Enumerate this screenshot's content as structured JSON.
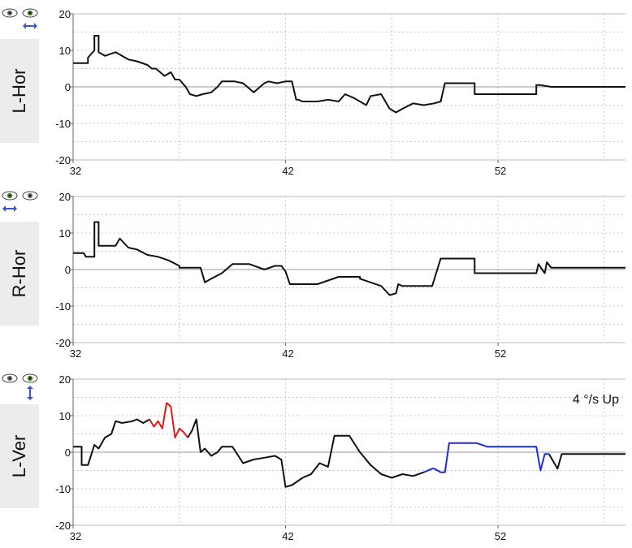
{
  "panels": [
    {
      "label": "L-Hor",
      "eyes": {
        "left": "eye-icon",
        "right": "eye-icon",
        "active": "left",
        "arrow": "horizontal-arrow-icon"
      }
    },
    {
      "label": "R-Hor",
      "eyes": {
        "left": "eye-icon",
        "right": "eye-icon",
        "active": "right",
        "arrow": "horizontal-arrow-icon"
      }
    },
    {
      "label": "L-Ver",
      "eyes": {
        "left": "eye-icon",
        "right": "eye-icon",
        "active": "left",
        "arrow": "vertical-arrow-icon"
      },
      "annotation": "4 °/s  Up"
    }
  ],
  "colors": {
    "trace": "#111111",
    "up": "#e01b1b",
    "down": "#1b2fd6",
    "grid": "#c8c8c8",
    "zero": "#999999",
    "label_bg": "#ececec",
    "arrow": "#3b55c8",
    "iris": "#4a8a2a"
  },
  "chart_data": [
    {
      "type": "line",
      "title": "L-Hor",
      "xlim": [
        32,
        58
      ],
      "ylim": [
        -20,
        20
      ],
      "xticks": [
        "32",
        "42",
        "52"
      ],
      "yticks": [
        "20",
        "10",
        "0",
        "-10",
        "-20"
      ],
      "grid": true,
      "series": [
        {
          "x": [
            32,
            32.7,
            32.7,
            33.0,
            33.0,
            33.2,
            33.2,
            33.5,
            34.0,
            34.3,
            34.6,
            35.0,
            35.5,
            35.7,
            35.9,
            36.3,
            36.6,
            36.8,
            37.0,
            37.3,
            37.5,
            37.8,
            38.1,
            38.5,
            38.8,
            39.0,
            39.5,
            39.6,
            40.0,
            40.5,
            40.8,
            41.0,
            41.2,
            41.6,
            42.0,
            42.3,
            42.5,
            42.6,
            42.8,
            43.5,
            44.0,
            44.5,
            44.8,
            45.2,
            45.5,
            45.8,
            46.0,
            46.5,
            46.9,
            47.2,
            47.5,
            48.0,
            48.5,
            49.0,
            49.3,
            49.5,
            50.0,
            50.5,
            50.9,
            50.9,
            52.0,
            53.0,
            53.5,
            53.8,
            53.8,
            54.0,
            54.5,
            55.0,
            56.0,
            57.0,
            58.0
          ],
          "y": [
            6.5,
            6.5,
            8,
            10,
            14,
            14,
            9.5,
            8.5,
            9.5,
            8.5,
            7.5,
            7,
            6,
            5,
            5,
            3,
            4,
            2,
            2,
            0,
            -2,
            -2.5,
            -2,
            -1.5,
            0,
            1.5,
            1.5,
            1.5,
            1,
            -1.5,
            0,
            1,
            1.5,
            1,
            1.5,
            1.5,
            -3.5,
            -3.5,
            -4,
            -4,
            -3.5,
            -4,
            -2,
            -3,
            -4,
            -5,
            -2.5,
            -2,
            -6,
            -7,
            -6,
            -4.5,
            -5,
            -4.5,
            -4,
            1,
            1,
            1,
            1,
            -2,
            -2,
            -2,
            -2,
            -2,
            0.5,
            0.5,
            0,
            0,
            0,
            0,
            0
          ]
        }
      ]
    },
    {
      "type": "line",
      "title": "R-Hor",
      "xlim": [
        32,
        58
      ],
      "ylim": [
        -20,
        20
      ],
      "xticks": [
        "32",
        "42",
        "52"
      ],
      "yticks": [
        "20",
        "10",
        "0",
        "-10",
        "-20"
      ],
      "grid": true,
      "series": [
        {
          "x": [
            32,
            32.5,
            32.6,
            33.0,
            33.0,
            33.2,
            33.2,
            34.0,
            34.2,
            34.6,
            35.0,
            35.5,
            36.0,
            36.5,
            37.0,
            37.0,
            38.0,
            38.2,
            38.5,
            39.0,
            39.5,
            40.0,
            40.3,
            41.0,
            41.5,
            41.8,
            42.0,
            42.2,
            42.4,
            43.5,
            44.5,
            45.0,
            45.5,
            45.5,
            46.5,
            46.9,
            47.2,
            47.3,
            47.5,
            48.0,
            48.9,
            49.3,
            49.5,
            50.5,
            50.9,
            50.9,
            52.0,
            53.0,
            53.8,
            53.9,
            54.2,
            54.3,
            54.5,
            55.0,
            56.0,
            57.0,
            58.0
          ],
          "y": [
            4.5,
            4.5,
            3.5,
            3.5,
            13,
            13,
            6.5,
            6.5,
            8.5,
            6,
            5.5,
            4,
            3.5,
            2.5,
            1,
            0.5,
            0.5,
            -3.5,
            -2.5,
            -1,
            1.5,
            1.5,
            1.5,
            0,
            1,
            1,
            -0.5,
            -4,
            -4,
            -4,
            -2,
            -2,
            -2,
            -2.5,
            -4.5,
            -7,
            -6.5,
            -4,
            -4.5,
            -4.5,
            -4.5,
            3,
            3,
            3,
            3,
            -1,
            -1,
            -1,
            -1,
            1.5,
            -1,
            2,
            0.5,
            0.5,
            0.5,
            0.5,
            0.5
          ]
        }
      ]
    },
    {
      "type": "line",
      "title": "L-Ver",
      "xlim": [
        32,
        58
      ],
      "ylim": [
        -20,
        20
      ],
      "xticks": [
        "32",
        "42",
        "52"
      ],
      "yticks": [
        "20",
        "10",
        "0",
        "-10",
        "-20"
      ],
      "grid": true,
      "annotation": "4 °/s  Up",
      "series": [
        {
          "x": [
            32,
            32.4,
            32.4,
            32.7,
            33.0,
            33.2,
            33.5,
            33.8,
            34.0,
            34.3,
            34.8,
            35.0,
            35.3,
            35.6
          ],
          "y": [
            1.5,
            1.5,
            -3.5,
            -3.5,
            2,
            1,
            4,
            5,
            8.5,
            8,
            8.5,
            9,
            8,
            9
          ]
        },
        {
          "x": [
            35.6,
            35.8,
            36.0,
            36.2,
            36.4,
            36.6,
            36.8,
            37.0,
            37.2,
            37.4
          ],
          "y": [
            9,
            7,
            8.5,
            6.5,
            13.5,
            12.5,
            4,
            6.5,
            5.5,
            4
          ]
        },
        {
          "x": [
            37.4,
            37.6,
            37.8,
            38.0,
            38.2,
            38.5,
            38.8,
            39.0,
            39.5,
            40.0,
            40.5,
            41.0,
            41.5,
            41.8,
            42.0,
            42.3,
            42.8,
            43.2,
            43.6,
            44.0,
            44.3,
            44.8,
            45.0,
            45.5,
            46.0,
            46.5,
            47.0,
            47.5,
            48.0,
            48.5
          ],
          "y": [
            4,
            6,
            9,
            0,
            1,
            -1,
            0,
            1.5,
            1.5,
            -3,
            -2,
            -1.5,
            -1,
            -2,
            -9.5,
            -9,
            -7,
            -6,
            -3,
            -4,
            4.5,
            4.5,
            4.5,
            0,
            -3.5,
            -6,
            -7,
            -6,
            -6.5,
            -5.5
          ]
        },
        {
          "x": [
            48.5,
            48.9,
            49.0,
            49.3,
            49.5,
            49.7,
            50.0,
            51.0,
            51.5,
            52.0,
            53.0,
            53.8,
            54.0,
            54.2,
            54.4
          ],
          "y": [
            -5.5,
            -4.5,
            -4.5,
            -5.5,
            -5.5,
            2.5,
            2.5,
            2.5,
            1.5,
            1.5,
            1.5,
            1.5,
            -5,
            -0.5,
            -0.5
          ]
        },
        {
          "x": [
            54.4,
            54.8,
            55.0,
            56.0,
            57.0,
            58.0
          ],
          "y": [
            -0.5,
            -4.5,
            -0.5,
            -0.5,
            -0.5,
            -0.5
          ]
        }
      ],
      "series_colors": [
        "trace",
        "up",
        "trace",
        "down",
        "trace"
      ]
    }
  ]
}
